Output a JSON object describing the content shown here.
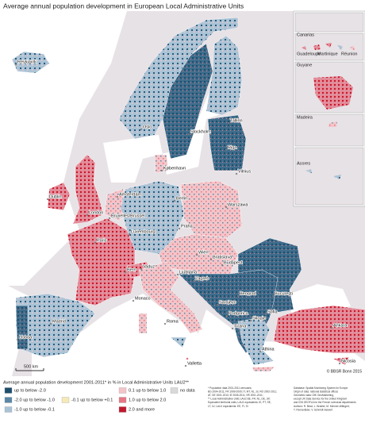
{
  "title": "Average annual population development in European Local Administrative Units",
  "cities": [
    "Reykjavík",
    "Oslo",
    "Stockholm",
    "Tallinn",
    "Riga",
    "København",
    "Vilnius",
    "Dublin",
    "Amsterdam",
    "Berlin",
    "Warszawa",
    "London",
    "Bruxelles/Brussel",
    "Praha",
    "Luxembourg",
    "Paris",
    "Wien",
    "Bratislava",
    "Budapest",
    "Bern",
    "Vaduz",
    "Ljubljana",
    "Zagreb",
    "Beograd",
    "București",
    "Monaco",
    "Sarajevo",
    "Podgorica",
    "Skopje",
    "Sofia",
    "Tirana",
    "Roma",
    "Madrid",
    "Lisboa",
    "Ankara",
    "Athina",
    "Valletta",
    "Nicosia"
  ],
  "insets": [
    "Canarias",
    "Guadeloupe",
    "Martinique",
    "Réunion",
    "Guyane",
    "Madeira",
    "Acores"
  ],
  "scale_label": "500 km",
  "copyright": "© BBSR Bonn 2015",
  "legend": {
    "title": "Average annual population development 2001-2011* in % in Local Administrative Units LAU2**",
    "items": [
      {
        "label": "up to below -2.0",
        "color": "#1f4e6b"
      },
      {
        "label": "-2.0 up to below -1.0",
        "color": "#5a87a6"
      },
      {
        "label": "-1.0 up to below -0.1",
        "color": "#a9c3d6"
      },
      {
        "label": "-0.1 up to below +0.1",
        "color": "#f5e9b8"
      },
      {
        "label": "0.1 up to below 1.0",
        "color": "#f3c4c8"
      },
      {
        "label": "1.0 up to below 2.0",
        "color": "#e67786"
      },
      {
        "label": "2.0 and more",
        "color": "#c0182d"
      },
      {
        "label": "no data",
        "color": "#d9d9d9"
      }
    ]
  },
  "footnotes": [
    "* Population data 2001-2011 censuses;",
    "BG 2004-2011; FR 1999-2009; IT, MT, NL, SI, RO 2002-2011;",
    "AT, DE 2001-2010; IE 2006-2011; HR 2001-2011;",
    "** Local Administrative Units LAU2 BE, FR, NL, DE, UK:",
    "Equivalent territorial units; LAU1 equivalents: IE, PT, SE,",
    "LT, LV; LAU1 equivalents: EE, FI, SI"
  ],
  "sources": [
    "Database: Spatial Monitoring System for Europe",
    "Origin of data: national statistical offices",
    "Geometric data: GfK GeoMarketing,",
    "except UK Data Service for the United Kingdom",
    "and IGN GEOFLA for the French overseas departments",
    "Authors: R. Binot, L. Bradler, M. Kimmer-Wähgert,",
    "T. Pannerälder, V. Schmidt-Seiwert"
  ]
}
